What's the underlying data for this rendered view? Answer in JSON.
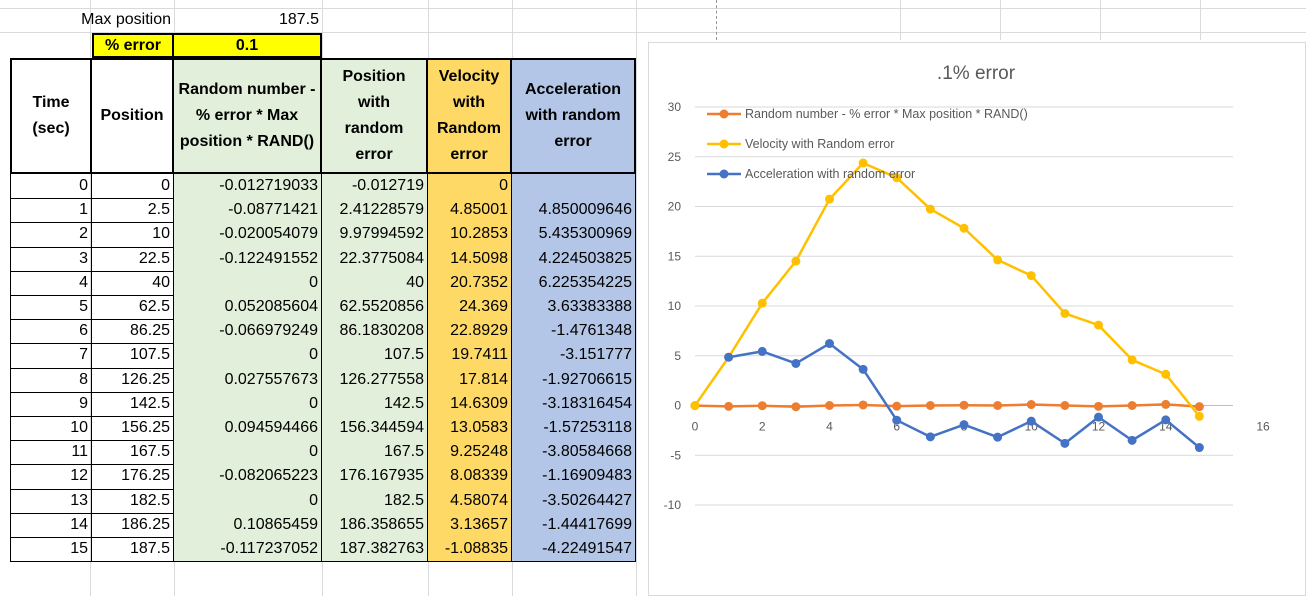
{
  "top": {
    "max_position_label": "Max position",
    "max_position_value": "187.5",
    "error_label": "% error",
    "error_value": "0.1"
  },
  "table": {
    "headers": [
      "Time (sec)",
      "Position",
      "Random number - % error * Max position * RAND()",
      "Position with random error",
      "Velocity with Random error",
      "Acceleration with random error"
    ],
    "rows": [
      [
        "0",
        "0",
        "-0.012719033",
        "-0.012719",
        "0",
        ""
      ],
      [
        "1",
        "2.5",
        "-0.08771421",
        "2.41228579",
        "4.85001",
        "4.850009646"
      ],
      [
        "2",
        "10",
        "-0.020054079",
        "9.97994592",
        "10.2853",
        "5.435300969"
      ],
      [
        "3",
        "22.5",
        "-0.122491552",
        "22.3775084",
        "14.5098",
        "4.224503825"
      ],
      [
        "4",
        "40",
        "0",
        "40",
        "20.7352",
        "6.225354225"
      ],
      [
        "5",
        "62.5",
        "0.052085604",
        "62.5520856",
        "24.369",
        "3.63383388"
      ],
      [
        "6",
        "86.25",
        "-0.066979249",
        "86.1830208",
        "22.8929",
        "-1.4761348"
      ],
      [
        "7",
        "107.5",
        "0",
        "107.5",
        "19.7411",
        "-3.151777"
      ],
      [
        "8",
        "126.25",
        "0.027557673",
        "126.277558",
        "17.814",
        "-1.92706615"
      ],
      [
        "9",
        "142.5",
        "0",
        "142.5",
        "14.6309",
        "-3.18316454"
      ],
      [
        "10",
        "156.25",
        "0.094594466",
        "156.344594",
        "13.0583",
        "-1.57253118"
      ],
      [
        "11",
        "167.5",
        "0",
        "167.5",
        "9.25248",
        "-3.80584668"
      ],
      [
        "12",
        "176.25",
        "-0.082065223",
        "176.167935",
        "8.08339",
        "-1.16909483"
      ],
      [
        "13",
        "182.5",
        "0",
        "182.5",
        "4.58074",
        "-3.50264427"
      ],
      [
        "14",
        "186.25",
        "0.10865459",
        "186.358655",
        "3.13657",
        "-1.44417699"
      ],
      [
        "15",
        "187.5",
        "-0.117237052",
        "187.382763",
        "-1.08835",
        "-4.22491547"
      ]
    ]
  },
  "colors": {
    "green": "#e2efda",
    "yellow": "#ffd966",
    "blue": "#b4c6e7",
    "error_fill": "#ffff00"
  },
  "chart_data": {
    "type": "scatter",
    "title": ".1% error",
    "xlim": [
      0,
      16
    ],
    "ylim": [
      -10,
      30
    ],
    "x_ticks": [
      0,
      2,
      4,
      6,
      8,
      10,
      12,
      14,
      16
    ],
    "y_ticks": [
      -10,
      -5,
      0,
      5,
      10,
      15,
      20,
      25,
      30
    ],
    "grid": true,
    "legend_position": "top-left",
    "series": [
      {
        "name": "Random number - % error * Max position * RAND()",
        "color": "#ed7d31",
        "x": [
          0,
          1,
          2,
          3,
          4,
          5,
          6,
          7,
          8,
          9,
          10,
          11,
          12,
          13,
          14,
          15
        ],
        "y": [
          -0.0127,
          -0.0877,
          -0.0201,
          -0.1225,
          0,
          0.0521,
          -0.067,
          0,
          0.0276,
          0,
          0.0946,
          0,
          -0.0821,
          0,
          0.1087,
          -0.1172
        ]
      },
      {
        "name": "Velocity with Random error",
        "color": "#ffc000",
        "x": [
          0,
          1,
          2,
          3,
          4,
          5,
          6,
          7,
          8,
          9,
          10,
          11,
          12,
          13,
          14,
          15
        ],
        "y": [
          0,
          4.85001,
          10.2853,
          14.5098,
          20.7352,
          24.369,
          22.8929,
          19.7411,
          17.814,
          14.6309,
          13.0583,
          9.25248,
          8.08339,
          4.58074,
          3.13657,
          -1.08835
        ]
      },
      {
        "name": "Acceleration with random error",
        "color": "#4472c4",
        "x": [
          1,
          2,
          3,
          4,
          5,
          6,
          7,
          8,
          9,
          10,
          11,
          12,
          13,
          14,
          15
        ],
        "y": [
          4.850009646,
          5.435300969,
          4.224503825,
          6.225354225,
          3.63383388,
          -1.4761348,
          -3.151777,
          -1.92706615,
          -3.18316454,
          -1.57253118,
          -3.80584668,
          -1.16909483,
          -3.50264427,
          -1.44417699,
          -4.22491547
        ]
      }
    ]
  }
}
